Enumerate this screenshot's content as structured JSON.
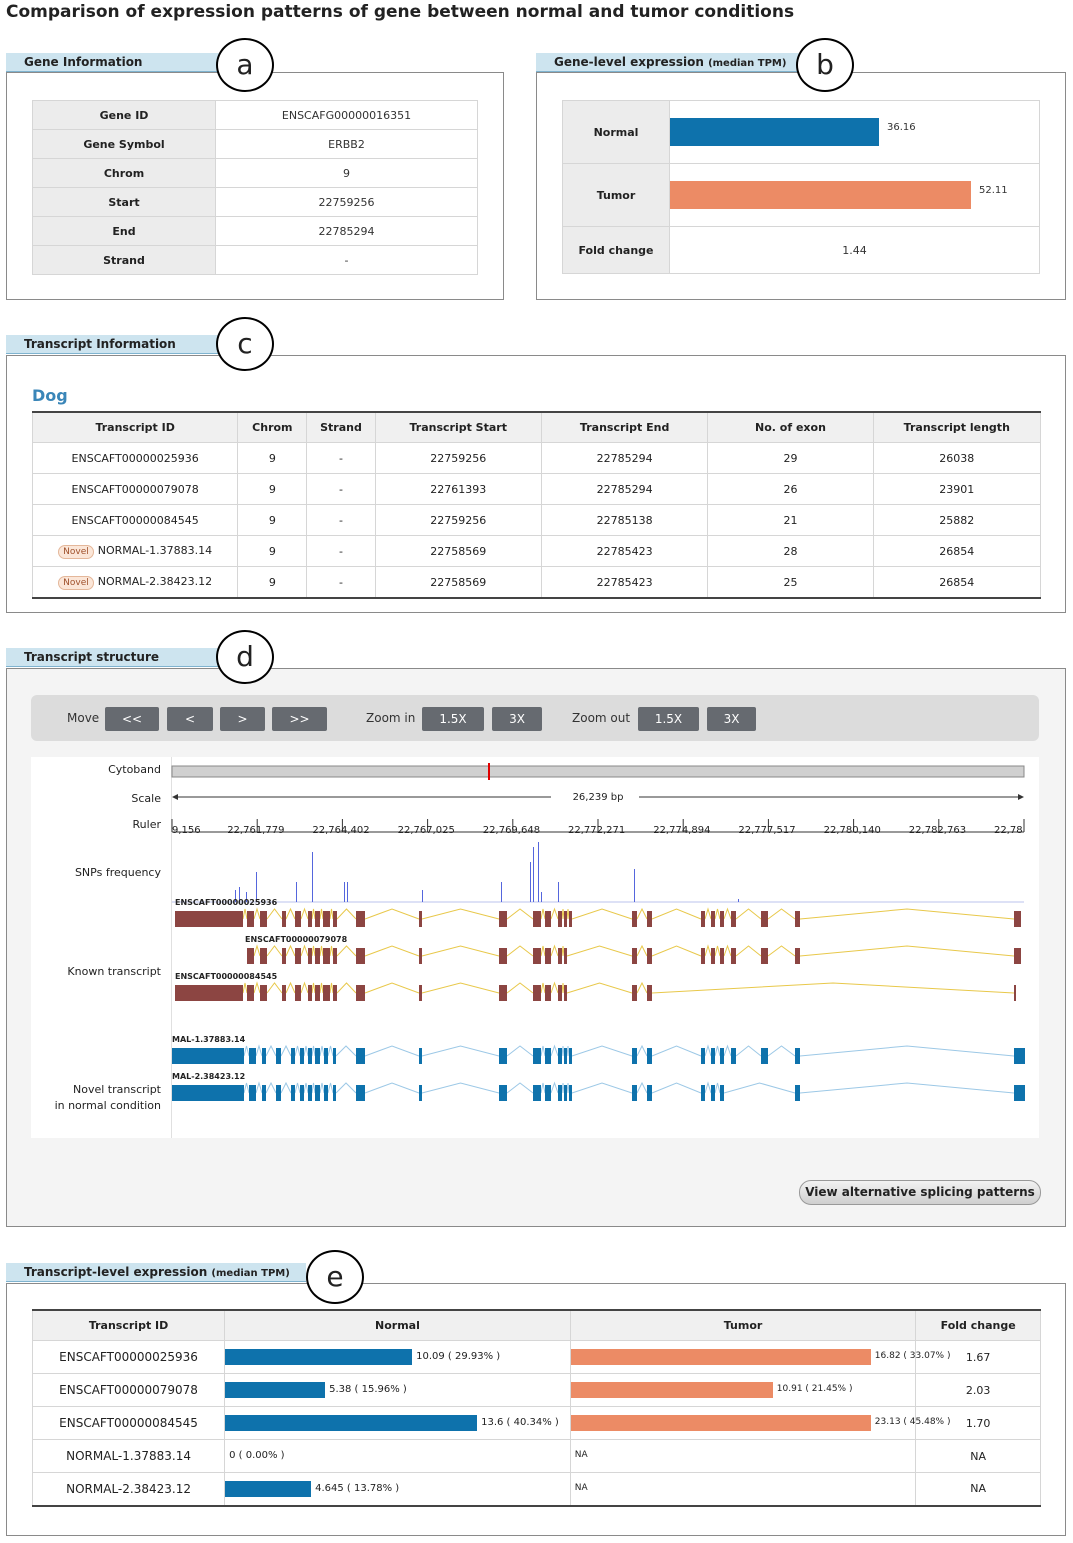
{
  "page_title": "Comparison of expression patterns of gene between normal and tumor conditions",
  "panel_letters": [
    "a",
    "b",
    "c",
    "d",
    "e"
  ],
  "gene_info": {
    "tab": "Gene Information",
    "rows": [
      {
        "label": "Gene ID",
        "value": "ENSCAFG00000016351"
      },
      {
        "label": "Gene Symbol",
        "value": "ERBB2"
      },
      {
        "label": "Chrom",
        "value": "9"
      },
      {
        "label": "Start",
        "value": "22759256"
      },
      {
        "label": "End",
        "value": "22785294"
      },
      {
        "label": "Strand",
        "value": "-"
      }
    ]
  },
  "gene_expression": {
    "tab": "Gene-level expression",
    "tab_unit": "(median TPM)",
    "normal_label": "Normal",
    "tumor_label": "Tumor",
    "fold_label": "Fold change",
    "normal_value": "36.16",
    "tumor_value": "52.11",
    "fold_value": "1.44",
    "normal_color": "#0e72ac",
    "tumor_color": "#ec8b65",
    "axis_max": 55
  },
  "transcript_info": {
    "tab": "Transcript Information",
    "species": "Dog",
    "headers": [
      "Transcript ID",
      "Chrom",
      "Strand",
      "Transcript Start",
      "Transcript End",
      "No. of exon",
      "Transcript length"
    ],
    "novel_badge": "Novel",
    "rows": [
      {
        "id": "ENSCAFT00000025936",
        "novel": false,
        "chrom": "9",
        "strand": "-",
        "start": "22759256",
        "end": "22785294",
        "exons": "29",
        "length": "26038"
      },
      {
        "id": "ENSCAFT00000079078",
        "novel": false,
        "chrom": "9",
        "strand": "-",
        "start": "22761393",
        "end": "22785294",
        "exons": "26",
        "length": "23901"
      },
      {
        "id": "ENSCAFT00000084545",
        "novel": false,
        "chrom": "9",
        "strand": "-",
        "start": "22759256",
        "end": "22785138",
        "exons": "21",
        "length": "25882"
      },
      {
        "id": "NORMAL-1.37883.14",
        "novel": true,
        "chrom": "9",
        "strand": "-",
        "start": "22758569",
        "end": "22785423",
        "exons": "28",
        "length": "26854"
      },
      {
        "id": "NORMAL-2.38423.12",
        "novel": true,
        "chrom": "9",
        "strand": "-",
        "start": "22758569",
        "end": "22785423",
        "exons": "25",
        "length": "26854"
      }
    ]
  },
  "structure": {
    "tab": "Transcript structure",
    "move_label": "Move",
    "move_buttons": [
      "<<",
      "<",
      ">",
      ">>"
    ],
    "zoom_in_label": "Zoom in",
    "zoom_in_buttons": [
      "1.5X",
      "3X"
    ],
    "zoom_out_label": "Zoom out",
    "zoom_out_buttons": [
      "1.5X",
      "3X"
    ],
    "track_labels": {
      "cytoband": "Cytoband",
      "scale": "Scale",
      "ruler": "Ruler",
      "snps": "SNPs frequency",
      "known": "Known transcript",
      "novel_line1": "Novel transcript",
      "novel_line2": "in normal condition"
    },
    "scale_text": "26,239 bp",
    "ruler_ticks": [
      "9,156",
      "22,761,779",
      "22,764,402",
      "22,767,025",
      "22,769,648",
      "22,772,271",
      "22,774,894",
      "22,777,517",
      "22,780,140",
      "22,782,763",
      "22,78"
    ],
    "known_transcripts": [
      "ENSCAFT00000025936",
      "ENSCAFT00000079078",
      "ENSCAFT00000084545"
    ],
    "novel_transcripts": [
      "MAL-1.37883.14",
      "MAL-2.38423.12"
    ],
    "known_color": "#8c4542",
    "novel_color": "#0e72ac",
    "intron_known_color": "#e8c84a",
    "intron_novel_color": "#9cc8e6",
    "snp_color": "#5566dd",
    "view_button": "View alternative splicing patterns"
  },
  "transcript_expression": {
    "tab": "Transcript-level expression",
    "tab_unit": "(median TPM)",
    "headers": [
      "Transcript ID",
      "Normal",
      "Tumor",
      "Fold change"
    ],
    "axis_max": 16.2,
    "rows": [
      {
        "id": "ENSCAFT00000025936",
        "normal": 10.09,
        "normal_text": "10.09 ( 29.93% )",
        "tumor": 16.82,
        "tumor_text": "16.82 ( 33.07% )",
        "fold": "1.67"
      },
      {
        "id": "ENSCAFT00000079078",
        "normal": 5.38,
        "normal_text": "5.38 ( 15.96% )",
        "tumor": 10.91,
        "tumor_text": "10.91 ( 21.45% )",
        "fold": "2.03"
      },
      {
        "id": "ENSCAFT00000084545",
        "normal": 13.6,
        "normal_text": "13.6 ( 40.34% )",
        "tumor": 23.13,
        "tumor_text": "23.13 ( 45.48% )",
        "fold": "1.70"
      },
      {
        "id": "NORMAL-1.37883.14",
        "normal": 0,
        "normal_text": "0 ( 0.00% )",
        "tumor": null,
        "tumor_text": "NA",
        "fold": "NA"
      },
      {
        "id": "NORMAL-2.38423.12",
        "normal": 4.645,
        "normal_text": "4.645 ( 13.78% )",
        "tumor": null,
        "tumor_text": "NA",
        "fold": "NA"
      }
    ]
  }
}
